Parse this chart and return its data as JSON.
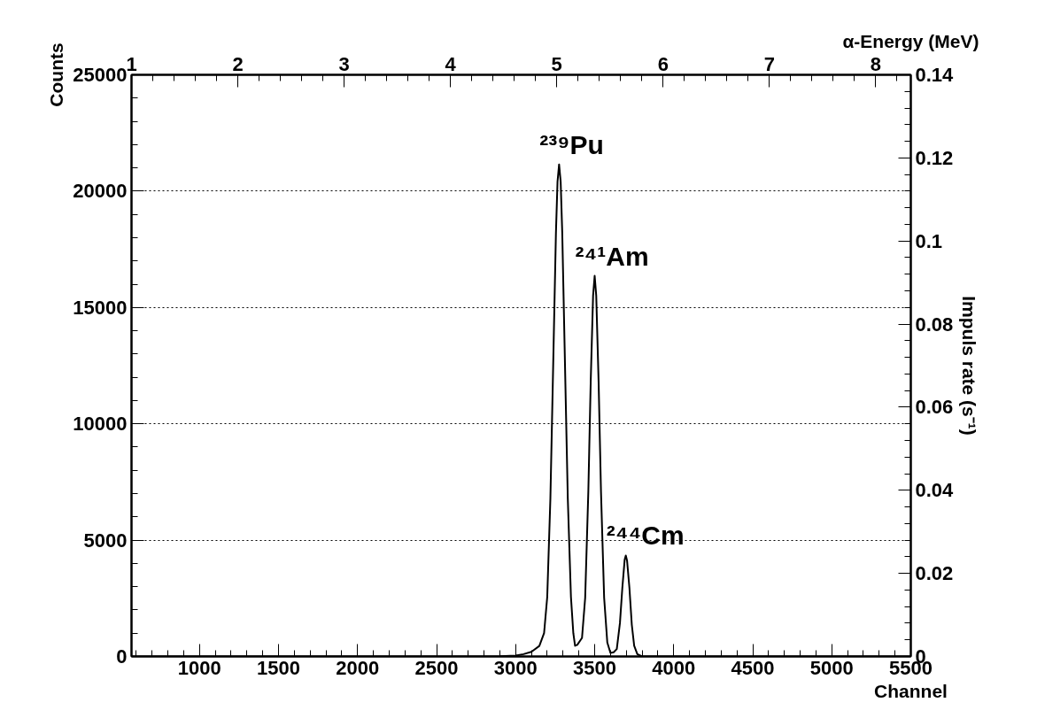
{
  "chart_data": {
    "type": "line",
    "xlabel": "Channel",
    "ylabel": "Counts",
    "y2label": "Impuls rate (s⁻¹)",
    "x2label": "α-Energy (MeV)",
    "series": [
      {
        "color": "#000000",
        "x": [
          570,
          2800,
          2900,
          3000,
          3050,
          3100,
          3150,
          3180,
          3200,
          3220,
          3240,
          3255,
          3265,
          3275,
          3285,
          3295,
          3310,
          3330,
          3350,
          3365,
          3376,
          3390,
          3420,
          3440,
          3460,
          3475,
          3490,
          3500,
          3510,
          3525,
          3540,
          3560,
          3580,
          3600,
          3620,
          3640,
          3660,
          3675,
          3690,
          3697,
          3705,
          3720,
          3735,
          3750,
          3770,
          3800,
          5500
        ],
        "values": [
          0,
          0,
          10,
          40,
          100,
          200,
          450,
          1000,
          2560,
          6800,
          13300,
          18200,
          20400,
          21150,
          20400,
          18200,
          13300,
          6800,
          2560,
          1000,
          460,
          500,
          800,
          2520,
          7100,
          11800,
          15500,
          16360,
          15500,
          11800,
          7100,
          2520,
          600,
          150,
          180,
          320,
          1440,
          2940,
          4170,
          4340,
          4120,
          2940,
          1360,
          460,
          100,
          0,
          0
        ]
      }
    ],
    "annotations": [
      {
        "text": "²³⁹Pu",
        "x": 3275,
        "y": 21150
      },
      {
        "text": "²⁴¹Am",
        "x": 3500,
        "y": 16360
      },
      {
        "text": "²⁴⁴Cm",
        "x": 3697,
        "y": 4340
      }
    ],
    "xlim": [
      570,
      5500
    ],
    "xticks": [
      1000,
      1500,
      2000,
      2500,
      3000,
      3500,
      4000,
      4500,
      5000,
      5500
    ],
    "ylim": [
      0,
      25000
    ],
    "yticks": [
      0,
      5000,
      10000,
      15000,
      20000,
      25000
    ],
    "y2lim": [
      0,
      0.14
    ],
    "y2ticks": [
      0,
      0.02,
      0.04,
      0.06,
      0.08,
      0.1,
      0.12,
      0.14
    ],
    "x2lim": [
      1,
      8.33
    ],
    "x2ticks": [
      1,
      2,
      3,
      4,
      5,
      6,
      7,
      8
    ],
    "grid": true
  }
}
